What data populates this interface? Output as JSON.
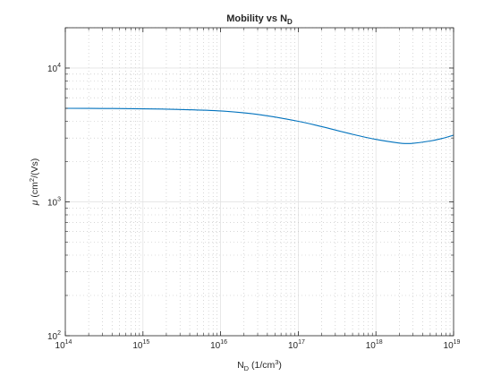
{
  "chart_data": {
    "type": "line",
    "title": {
      "main": "Mobility vs N",
      "sub": "D"
    },
    "xlabel": {
      "pre": "N",
      "sub": "D",
      "mid": " (1/cm",
      "sup": "3",
      "post": ")"
    },
    "ylabel": {
      "sym": "μ",
      "mid": " (cm",
      "sup": "2",
      "post": "/(Vs)"
    },
    "x_scale": "log",
    "y_scale": "log",
    "xlim": [
      100000000000000.0,
      1e+19
    ],
    "ylim": [
      100,
      20000
    ],
    "grid": true,
    "minor_grid": true,
    "x_ticks": [
      {
        "base": "10",
        "exp": "14"
      },
      {
        "base": "10",
        "exp": "15"
      },
      {
        "base": "10",
        "exp": "16"
      },
      {
        "base": "10",
        "exp": "17"
      },
      {
        "base": "10",
        "exp": "18"
      },
      {
        "base": "10",
        "exp": "19"
      }
    ],
    "y_ticks": [
      {
        "base": "10",
        "exp": "2"
      },
      {
        "base": "10",
        "exp": "3"
      },
      {
        "base": "10",
        "exp": "4"
      }
    ],
    "series": [
      {
        "color": "#0072BD",
        "x": [
          100000000000000.0,
          300000000000000.0,
          1000000000000000.0,
          3000000000000000.0,
          1e+16,
          3e+16,
          1e+17,
          2e+17,
          5e+17,
          1e+18,
          2e+18,
          2.5e+18,
          3e+18,
          5e+18,
          7e+18,
          1e+19
        ],
        "y": [
          5000,
          4990,
          4960,
          4900,
          4780,
          4500,
          4000,
          3650,
          3200,
          2930,
          2750,
          2730,
          2740,
          2850,
          2970,
          3150
        ]
      }
    ]
  }
}
